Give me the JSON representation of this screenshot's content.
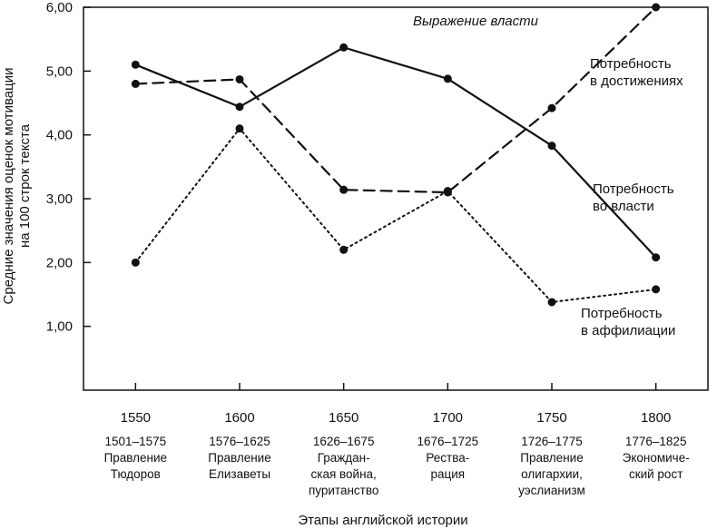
{
  "chart_data": {
    "type": "line",
    "title": "",
    "x": [
      1550,
      1600,
      1650,
      1700,
      1750,
      1800
    ],
    "x_tick_labels": [
      "1550",
      "1600",
      "1650",
      "1700",
      "1750",
      "1800"
    ],
    "periods": [
      [
        "1501–1575",
        "Правление",
        "Тюдоров"
      ],
      [
        "1576–1625",
        "Правление",
        "Елизаветы"
      ],
      [
        "1626–1675",
        "Граждан-",
        "ская война,",
        "пуританство"
      ],
      [
        "1676–1725",
        "Рества-",
        "рация"
      ],
      [
        "1726–1775",
        "Правление",
        "олигархии,",
        "уэслианизм"
      ],
      [
        "1776–1825",
        "Экономиче-",
        "ский рост"
      ]
    ],
    "xlabel": "Этапы английской истории",
    "ylabel_lines": [
      "Средние значения оценок мотивации",
      "на 100 строк текста"
    ],
    "ylim": [
      0,
      6
    ],
    "y_ticks": [
      1,
      2,
      3,
      4,
      5,
      6
    ],
    "y_tick_labels": [
      "1,00",
      "2,00",
      "3,00",
      "4,00",
      "5,00",
      "6,00"
    ],
    "annotation": "Выражение власти",
    "series": [
      {
        "name_lines": [
          "Потребность",
          "в достижениях"
        ],
        "style": "dashed",
        "values": [
          4.8,
          4.87,
          3.14,
          3.1,
          4.42,
          6.0
        ]
      },
      {
        "name_lines": [
          "Потребность",
          "во власти"
        ],
        "style": "solid",
        "values": [
          5.1,
          4.44,
          5.37,
          4.88,
          3.83,
          2.08
        ]
      },
      {
        "name_lines": [
          "Потребность",
          "в аффилиации"
        ],
        "style": "dotted",
        "values": [
          2.0,
          4.1,
          2.2,
          3.12,
          1.38,
          1.58
        ]
      }
    ]
  }
}
